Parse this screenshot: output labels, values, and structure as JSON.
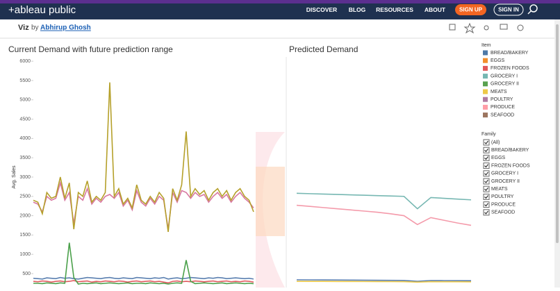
{
  "nav": {
    "logo": "+ableau public",
    "links": [
      "DISCOVER",
      "BLOG",
      "RESOURCES",
      "ABOUT"
    ],
    "signup": "SIGN UP",
    "signin": "SIGN IN"
  },
  "header": {
    "viz": "Viz",
    "by": "by",
    "author": "Abhirup Ghosh"
  },
  "chart_data": [
    {
      "type": "line",
      "title": "Current Demand with future prediction range",
      "y_label": "Avg. Sales",
      "ylim": [
        140,
        6110
      ],
      "yticks": [
        500,
        1000,
        1500,
        2000,
        2500,
        3000,
        3500,
        4000,
        4500,
        5000,
        5500,
        6000
      ],
      "series": [
        {
          "color": "#5a7fb0",
          "values": [
            380,
            370,
            360,
            390,
            380,
            370,
            400,
            380,
            390,
            370,
            360,
            380,
            400,
            390,
            380,
            370,
            390,
            400,
            380,
            370,
            390,
            380,
            370,
            400,
            390,
            380,
            370,
            390,
            380,
            400,
            360,
            380,
            390,
            370,
            380,
            400,
            390,
            380,
            370,
            390,
            380,
            400,
            390,
            370,
            380,
            390,
            380,
            370,
            380,
            360
          ]
        },
        {
          "color": "#e05a5e",
          "values": [
            300,
            290,
            310,
            300,
            280,
            300,
            310,
            290,
            300,
            320,
            290,
            300,
            310,
            280,
            300,
            290,
            310,
            300,
            290,
            310,
            300,
            280,
            300,
            310,
            290,
            300,
            310,
            290,
            300,
            280,
            260,
            300,
            310,
            290,
            300,
            290,
            310,
            300,
            290,
            300,
            310,
            290,
            300,
            310,
            290,
            300,
            290,
            310,
            300,
            280
          ]
        },
        {
          "color": "#4aa04a",
          "values": [
            250,
            250,
            240,
            260,
            250,
            240,
            260,
            250,
            1300,
            400,
            230,
            250,
            240,
            250,
            260,
            240,
            250,
            260,
            250,
            240,
            250,
            260,
            240,
            250,
            250,
            240,
            260,
            250,
            240,
            250,
            230,
            250,
            260,
            250,
            850,
            300,
            240,
            250,
            260,
            250,
            240,
            250,
            260,
            240,
            250,
            260,
            250,
            240,
            250,
            240
          ]
        },
        {
          "color": "#d877a0",
          "values": [
            2350,
            2300,
            2100,
            2500,
            2400,
            2450,
            2850,
            2400,
            2600,
            1800,
            2500,
            2400,
            2700,
            2300,
            2450,
            2350,
            2500,
            2550,
            2450,
            2600,
            2250,
            2400,
            2150,
            2650,
            2350,
            2250,
            2450,
            2300,
            2500,
            2400,
            1650,
            2600,
            2350,
            2650,
            2600,
            2450,
            2600,
            2500,
            2550,
            2350,
            2500,
            2600,
            2450,
            2550,
            2350,
            2500,
            2600,
            2450,
            2350,
            2200
          ]
        },
        {
          "color": "#b5a02a",
          "values": [
            2400,
            2350,
            2050,
            2600,
            2450,
            2500,
            3000,
            2450,
            2850,
            1650,
            2600,
            2500,
            2900,
            2350,
            2500,
            2400,
            2600,
            5450,
            2500,
            2700,
            2300,
            2450,
            2200,
            2800,
            2400,
            2300,
            2500,
            2350,
            2600,
            2450,
            1580,
            2700,
            2400,
            2800,
            4180,
            2500,
            2700,
            2550,
            2650,
            2400,
            2600,
            2700,
            2500,
            2650,
            2400,
            2600,
            2700,
            2500,
            2400,
            2100
          ]
        }
      ]
    },
    {
      "type": "line",
      "title": "Predicted Demand",
      "ylim": [
        140,
        6110
      ],
      "series": [
        {
          "color": "#76b7b2",
          "values": [
            2580,
            2570,
            2560,
            2550,
            2540,
            2530,
            2520,
            2510,
            2500,
            2180,
            2470,
            2450,
            2430,
            2410
          ]
        },
        {
          "color": "#f49aaa",
          "values": [
            2270,
            2240,
            2210,
            2180,
            2150,
            2120,
            2090,
            2050,
            2000,
            1770,
            1950,
            1880,
            1810,
            1750
          ]
        },
        {
          "color": "#5a7fb0",
          "values": [
            340,
            338,
            336,
            334,
            332,
            330,
            328,
            326,
            324,
            300,
            322,
            320,
            318,
            316
          ]
        },
        {
          "color": "#edc948",
          "values": [
            300,
            299,
            298,
            297,
            296,
            295,
            294,
            293,
            292,
            280,
            291,
            290,
            289,
            288
          ]
        }
      ]
    }
  ],
  "legend": {
    "title": "Item",
    "items": [
      {
        "name": "BREAD/BAKERY",
        "color": "#4e79a7"
      },
      {
        "name": "EGGS",
        "color": "#f28e2b"
      },
      {
        "name": "FROZEN FOODS",
        "color": "#e15759"
      },
      {
        "name": "GROCERY I",
        "color": "#76b7b2"
      },
      {
        "name": "GROCERY II",
        "color": "#59a14f"
      },
      {
        "name": "MEATS",
        "color": "#edc948"
      },
      {
        "name": "POULTRY",
        "color": "#b07aa1"
      },
      {
        "name": "PRODUCE",
        "color": "#ff9da7"
      },
      {
        "name": "SEAFOOD",
        "color": "#9c755f"
      }
    ]
  },
  "filter": {
    "title": "Family",
    "items": [
      "(All)",
      "BREAD/BAKERY",
      "EGGS",
      "FROZEN FOODS",
      "GROCERY I",
      "GROCERY II",
      "MEATS",
      "POULTRY",
      "PRODUCE",
      "SEAFOOD"
    ]
  }
}
